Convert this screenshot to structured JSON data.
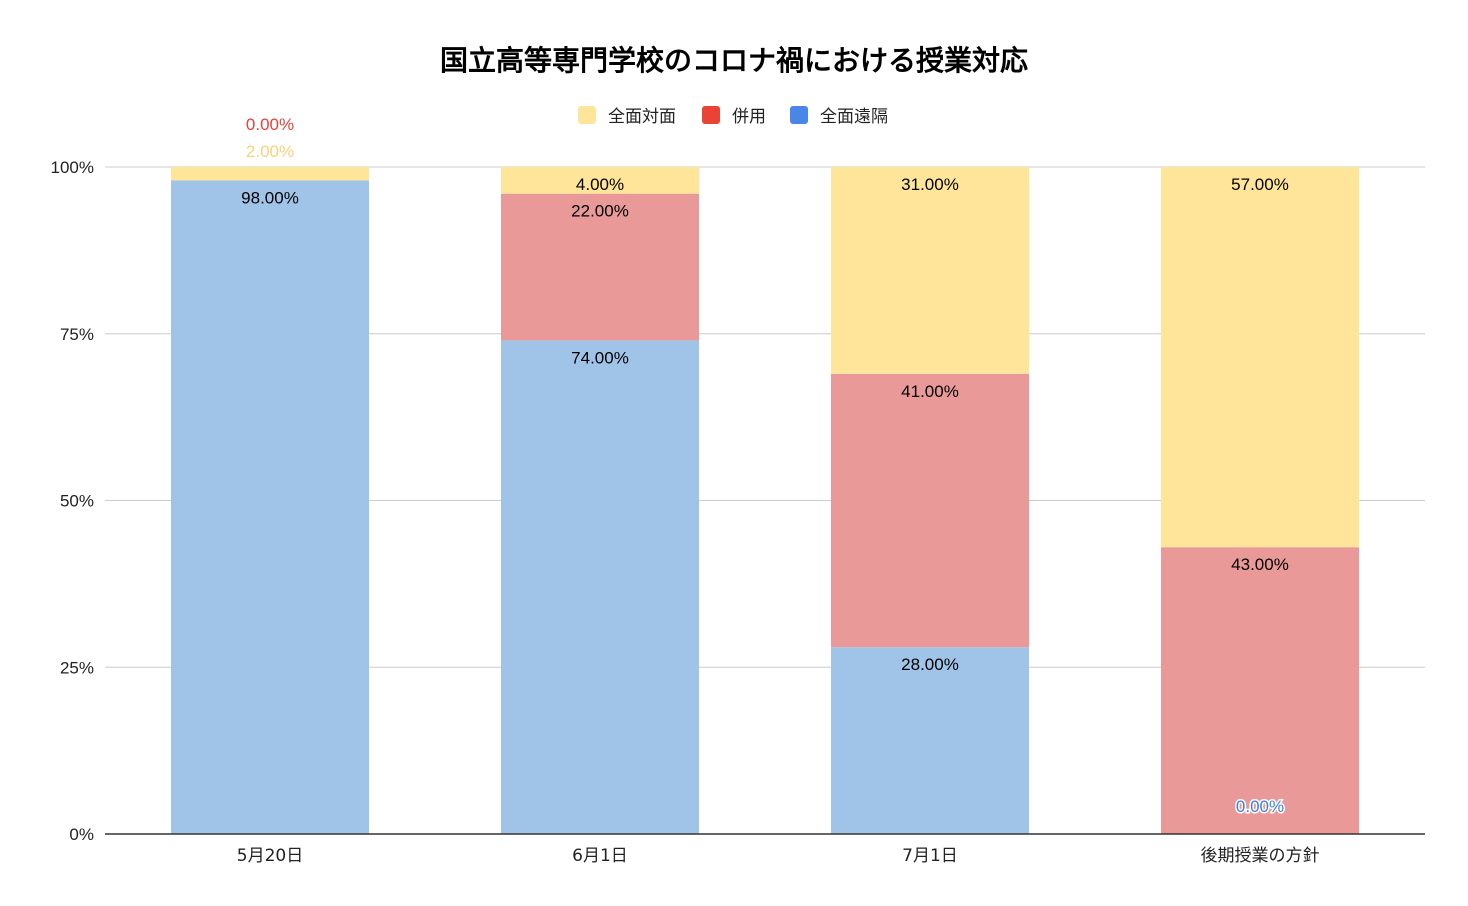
{
  "chart_data": {
    "type": "bar",
    "stacked": true,
    "title": "国立高等専門学校のコロナ禍における授業対応",
    "categories": [
      "5月20日",
      "6月1日",
      "7月1日",
      "後期授業の方針"
    ],
    "series": [
      {
        "name": "全面遠隔",
        "values": [
          98,
          74,
          28,
          0
        ],
        "labels": [
          "98.00%",
          "74.00%",
          "28.00%",
          "0.00%"
        ],
        "color": "#a0c4e8",
        "legend_color": "#4a86e8",
        "label_color": "#3d7ee0"
      },
      {
        "name": "併用",
        "values": [
          0,
          22,
          41,
          43
        ],
        "labels": [
          "0.00%",
          "22.00%",
          "41.00%",
          "43.00%"
        ],
        "color": "#ea9999",
        "legend_color": "#ea4335",
        "label_color": "#e0443a"
      },
      {
        "name": "全面対面",
        "values": [
          2,
          4,
          31,
          57
        ],
        "labels": [
          "2.00%",
          "4.00%",
          "31.00%",
          "57.00%"
        ],
        "color": "#ffe599",
        "legend_color": "#ffe599",
        "label_color": "#f6d27a"
      }
    ],
    "legend_order": [
      "全面対面",
      "併用",
      "全面遠隔"
    ],
    "yticks": [
      "0%",
      "25%",
      "50%",
      "75%",
      "100%"
    ],
    "ylim": [
      0,
      100
    ],
    "legend_position": "top",
    "grid": true
  }
}
